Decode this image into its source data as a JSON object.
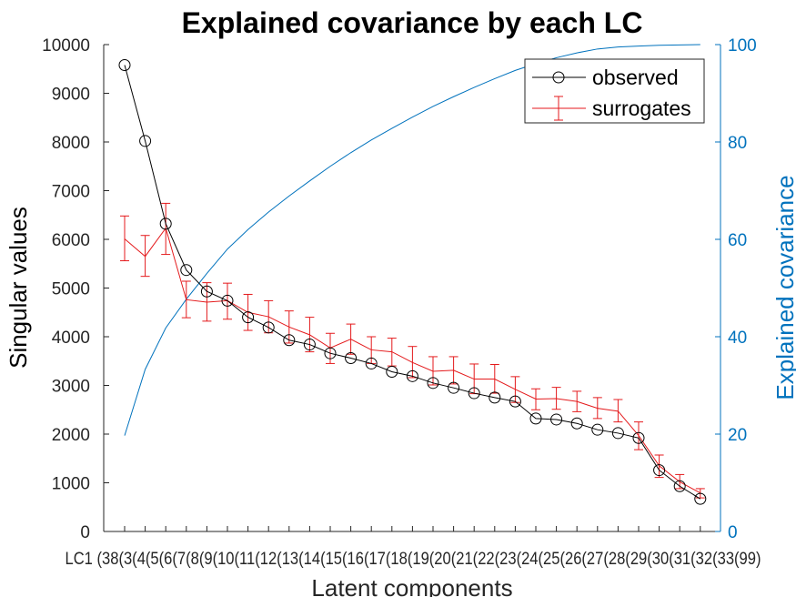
{
  "chart_data": {
    "type": "line",
    "title": "Explained covariance by each LC",
    "xlabel": "Latent components",
    "ylabel_left": "Singular values",
    "ylabel_right": "Explained covariance",
    "ylim_left": [
      0,
      10000
    ],
    "ylim_right": [
      0,
      100
    ],
    "yticks_left": [
      "0",
      "1000",
      "2000",
      "3000",
      "4000",
      "5000",
      "6000",
      "7000",
      "8000",
      "9000",
      "10000"
    ],
    "yticks_right": [
      "0",
      "20",
      "40",
      "60",
      "80",
      "100"
    ],
    "x_tick_text": "LC1 (38(3(4(5(6(7(8(9(10(11(12(13(14(15(16(17(18(19(20(21(22(23(24(25(26(27(28(29(30(31(32(33(99)",
    "categories": [
      "LC1",
      "LC2",
      "LC3",
      "LC4",
      "LC5",
      "LC6",
      "LC7",
      "LC8",
      "LC9",
      "LC10",
      "LC11",
      "LC12",
      "LC13",
      "LC14",
      "LC15",
      "LC16",
      "LC17",
      "LC18",
      "LC19",
      "LC20",
      "LC21",
      "LC22",
      "LC23",
      "LC24",
      "LC25",
      "LC26",
      "LC27",
      "LC28",
      "LC29"
    ],
    "legend_position": "top-right",
    "grid": false,
    "series": [
      {
        "name": "observed",
        "axis": "left",
        "color": "#000000",
        "marker": "circle",
        "values": [
          9580,
          8020,
          6320,
          5370,
          4930,
          4740,
          4400,
          4190,
          3930,
          3840,
          3660,
          3560,
          3450,
          3280,
          3190,
          3050,
          2950,
          2840,
          2750,
          2670,
          2320,
          2300,
          2220,
          2090,
          2020,
          1920,
          1260,
          930,
          670
        ]
      },
      {
        "name": "surrogates",
        "axis": "left",
        "color": "#e41a1c",
        "error_bars": true,
        "values": [
          6010,
          5650,
          6230,
          4760,
          4710,
          4740,
          4500,
          4410,
          4200,
          4040,
          3770,
          3950,
          3730,
          3690,
          3470,
          3290,
          3310,
          3130,
          3130,
          2920,
          2720,
          2730,
          2670,
          2530,
          2470,
          1970,
          1350,
          1020,
          790
        ],
        "error_low": [
          5560,
          5240,
          5690,
          4390,
          4320,
          4360,
          4130,
          4080,
          3870,
          3690,
          3450,
          3640,
          3450,
          3400,
          3160,
          3010,
          3030,
          2830,
          2840,
          2650,
          2500,
          2510,
          2460,
          2320,
          2250,
          1680,
          1110,
          880,
          690
        ],
        "error_high": [
          6480,
          6080,
          6740,
          5140,
          5110,
          5100,
          4870,
          4740,
          4530,
          4400,
          4070,
          4260,
          4000,
          3970,
          3800,
          3590,
          3590,
          3440,
          3430,
          3180,
          2930,
          2960,
          2880,
          2750,
          2710,
          2250,
          1570,
          1170,
          880
        ]
      },
      {
        "name": "Explained covariance",
        "axis": "right",
        "color": "#0072bd",
        "values": [
          19.7,
          33.3,
          41.8,
          47.7,
          53.0,
          58.0,
          62.0,
          65.6,
          68.9,
          72.0,
          75.0,
          77.8,
          80.4,
          82.8,
          85.1,
          87.3,
          89.3,
          91.2,
          93.0,
          94.7,
          96.1,
          97.3,
          98.3,
          99.1,
          99.5,
          99.7,
          99.85,
          99.93,
          100
        ]
      }
    ]
  }
}
